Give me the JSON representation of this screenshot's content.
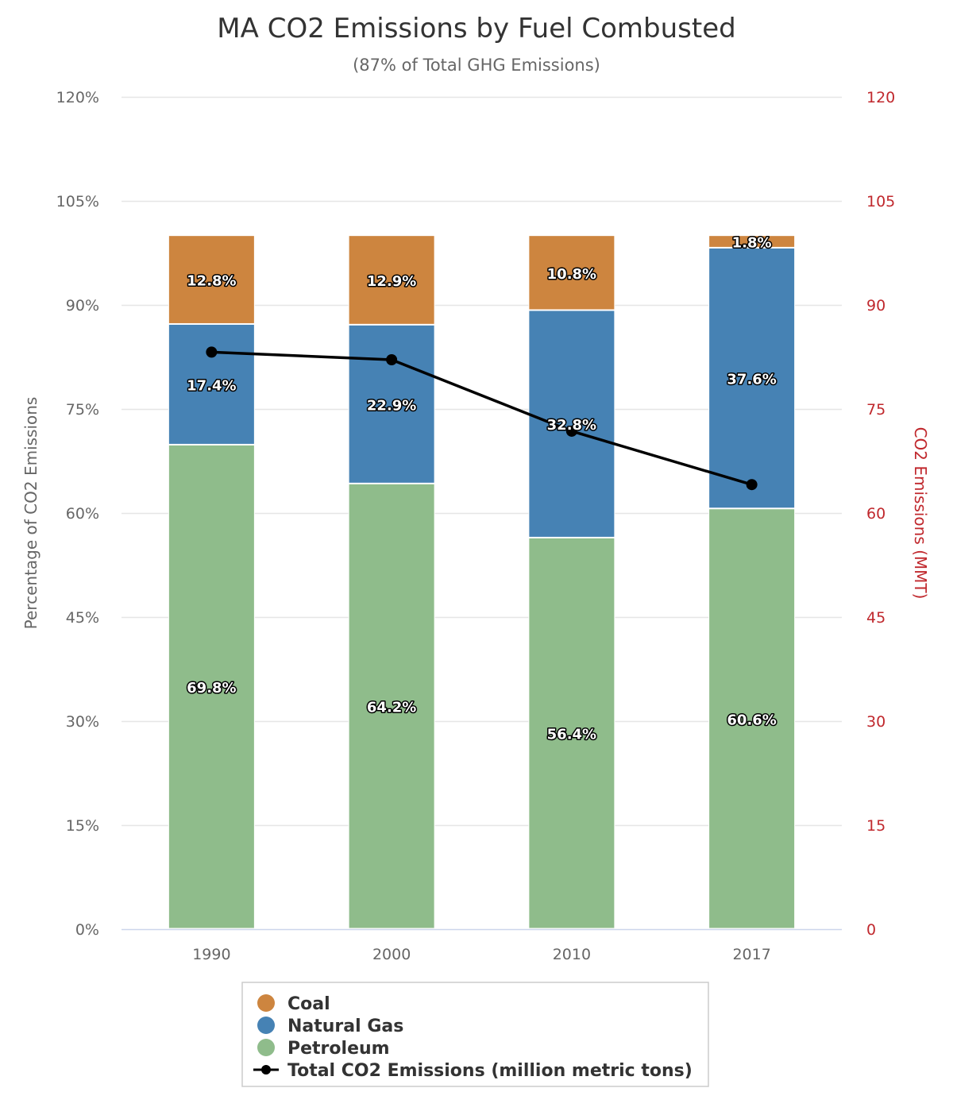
{
  "chart_data": {
    "type": "bar",
    "stacked": true,
    "title": "MA CO2 Emissions by Fuel Combusted",
    "subtitle": "(87% of Total GHG Emissions)",
    "categories": [
      "1990",
      "2000",
      "2010",
      "2017"
    ],
    "series": [
      {
        "name": "Petroleum",
        "color": "#8fbc8b",
        "values": [
          69.8,
          64.2,
          56.4,
          60.6
        ],
        "labels": [
          "69.8%",
          "64.2%",
          "56.4%",
          "60.6%"
        ]
      },
      {
        "name": "Natural Gas",
        "color": "#4682b4",
        "values": [
          17.4,
          22.9,
          32.8,
          37.6
        ],
        "labels": [
          "17.4%",
          "22.9%",
          "32.8%",
          "37.6%"
        ]
      },
      {
        "name": "Coal",
        "color": "#cd853f",
        "values": [
          12.8,
          12.9,
          10.8,
          1.8
        ],
        "labels": [
          "12.8%",
          "12.9%",
          "10.8%",
          "1.8%"
        ]
      }
    ],
    "line_series": {
      "name": "Total CO2 Emissions (million metric tons)",
      "color": "#000000",
      "axis": "right",
      "values": [
        83.2,
        82.1,
        71.8,
        64.1
      ]
    },
    "ylabel": "Percentage of CO2 Emissions",
    "y2label": "CO2 Emissions (MMT)",
    "ylim": [
      0,
      120
    ],
    "y2lim": [
      0,
      120
    ],
    "yticks": [
      "0%",
      "15%",
      "30%",
      "45%",
      "60%",
      "75%",
      "90%",
      "105%",
      "120%"
    ],
    "y2ticks": [
      "0",
      "15",
      "30",
      "45",
      "60",
      "75",
      "90",
      "105",
      "120"
    ],
    "grid": true,
    "legend": {
      "placement": "bottom-center",
      "items": [
        "Coal",
        "Natural Gas",
        "Petroleum",
        "Total CO2 Emissions (million metric tons)"
      ]
    },
    "y2_color": "#c0282d"
  }
}
